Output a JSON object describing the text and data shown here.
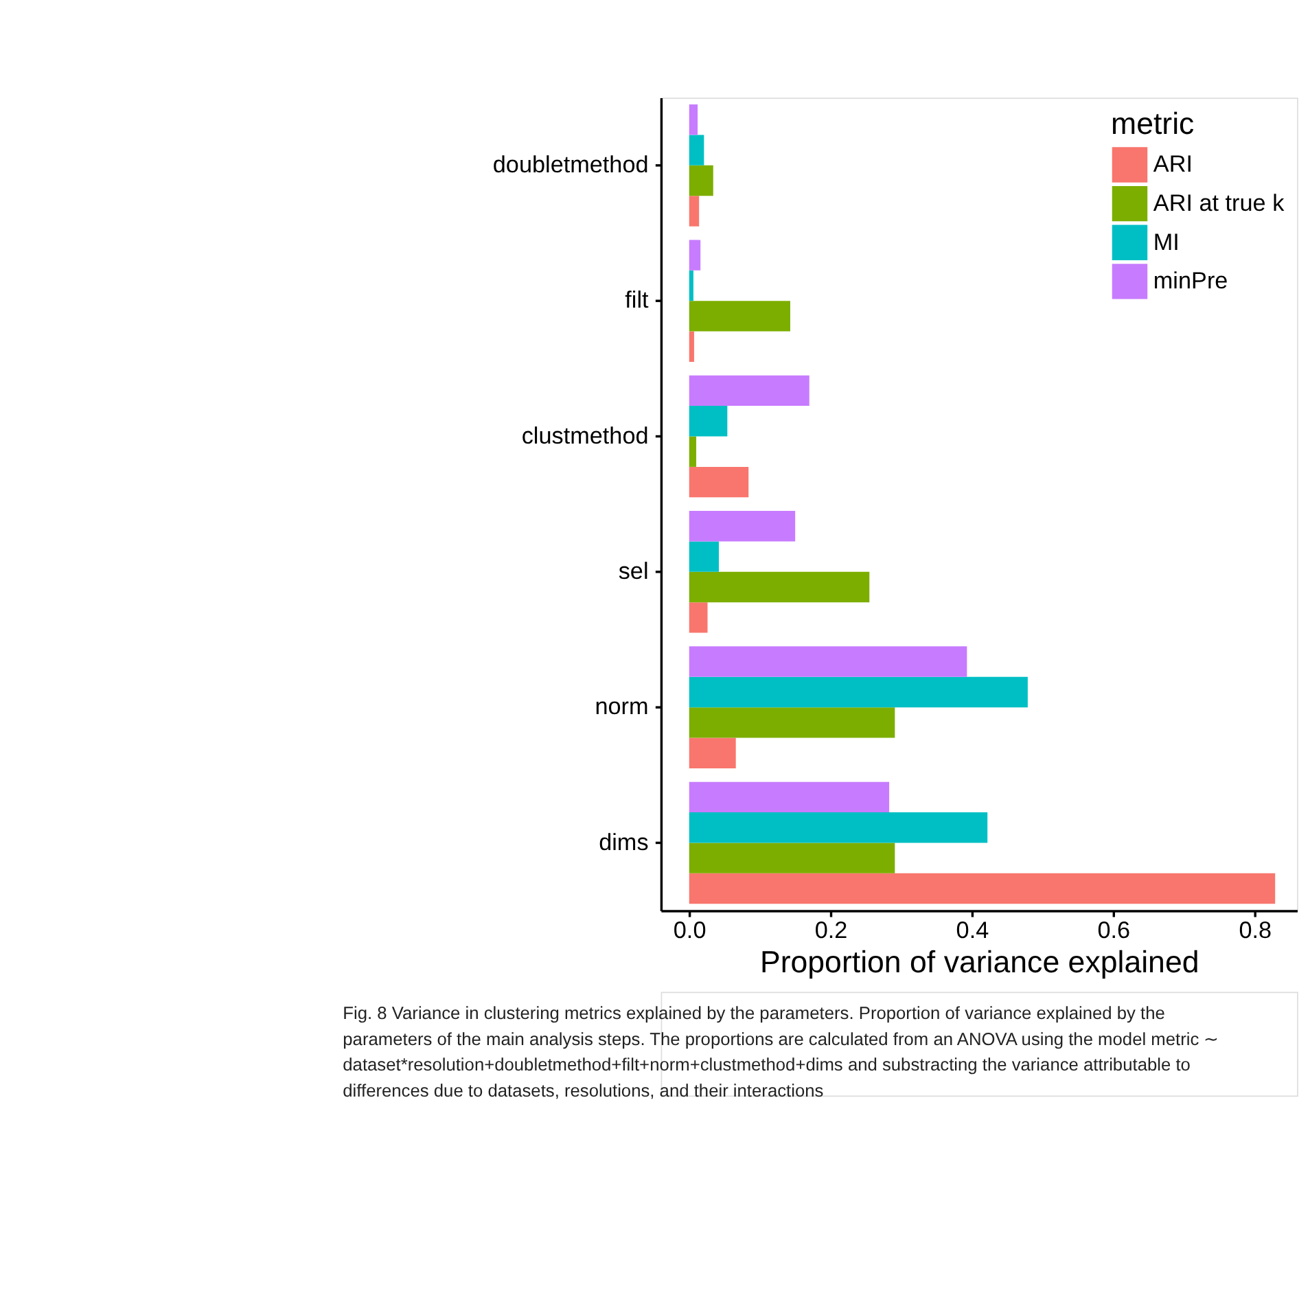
{
  "chart_data": {
    "type": "bar",
    "orientation": "horizontal",
    "categories": [
      "doubletmethod",
      "filt",
      "clustmethod",
      "sel",
      "norm",
      "dims"
    ],
    "series": [
      {
        "name": "ARI",
        "color": "#f8766d",
        "values": [
          0.014,
          0.007,
          0.084,
          0.026,
          0.066,
          0.829
        ]
      },
      {
        "name": "ARI at true k",
        "color": "#7cae00",
        "values": [
          0.034,
          0.143,
          0.01,
          0.255,
          0.291,
          0.291
        ]
      },
      {
        "name": "MI",
        "color": "#00bfc4",
        "values": [
          0.021,
          0.006,
          0.054,
          0.042,
          0.479,
          0.422
        ]
      },
      {
        "name": "minPre",
        "color": "#c77cff",
        "values": [
          0.012,
          0.016,
          0.17,
          0.15,
          0.393,
          0.283
        ]
      }
    ],
    "xlabel": "Proportion of variance explained",
    "legend_title": "metric",
    "legend": "top right",
    "grid": false,
    "xlim": [
      -0.04,
      0.86
    ],
    "xticks": [
      {
        "value": 0,
        "label": "0.0"
      },
      {
        "value": 0.2,
        "label": "0.2"
      },
      {
        "value": 0.4,
        "label": "0.4"
      },
      {
        "value": 0.6,
        "label": "0.6"
      },
      {
        "value": 0.8,
        "label": "0.8"
      }
    ],
    "annotations": [
      "Fig. 8 Variance in clustering metrics explained by the parameters. Proportion of variance explained by the parameters of the main analysis steps. The proportions are calculated from an ANOVA using the model metric ∼ dataset*resolution+doubletmethod+filt+norm+clustmethod+dims and substracting the variance attributable to differences due to datasets, resolutions, and their interactions"
    ]
  }
}
